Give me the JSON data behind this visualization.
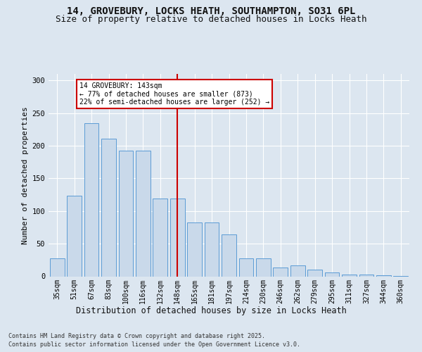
{
  "title_line1": "14, GROVEBURY, LOCKS HEATH, SOUTHAMPTON, SO31 6PL",
  "title_line2": "Size of property relative to detached houses in Locks Heath",
  "xlabel": "Distribution of detached houses by size in Locks Heath",
  "ylabel": "Number of detached properties",
  "categories": [
    "35sqm",
    "51sqm",
    "67sqm",
    "83sqm",
    "100sqm",
    "116sqm",
    "132sqm",
    "148sqm",
    "165sqm",
    "181sqm",
    "197sqm",
    "214sqm",
    "230sqm",
    "246sqm",
    "262sqm",
    "279sqm",
    "295sqm",
    "311sqm",
    "327sqm",
    "344sqm",
    "360sqm"
  ],
  "values": [
    27,
    124,
    234,
    211,
    193,
    193,
    119,
    119,
    83,
    83,
    64,
    27,
    27,
    14,
    17,
    10,
    6,
    3,
    3,
    2,
    1
  ],
  "bar_color": "#c9d9ea",
  "bar_edge_color": "#5b9bd5",
  "vline_x": 7,
  "vline_color": "#cc0000",
  "annotation_text": "14 GROVEBURY: 143sqm\n← 77% of detached houses are smaller (873)\n22% of semi-detached houses are larger (252) →",
  "annotation_box_color": "#ffffff",
  "annotation_box_edge": "#cc0000",
  "background_color": "#dce6f0",
  "plot_bg_color": "#dce6f0",
  "footer_line1": "Contains HM Land Registry data © Crown copyright and database right 2025.",
  "footer_line2": "Contains public sector information licensed under the Open Government Licence v3.0.",
  "ylim": [
    0,
    310
  ],
  "title_fontsize": 10,
  "subtitle_fontsize": 9,
  "tick_fontsize": 7,
  "label_fontsize": 8.5,
  "ylabel_fontsize": 8
}
